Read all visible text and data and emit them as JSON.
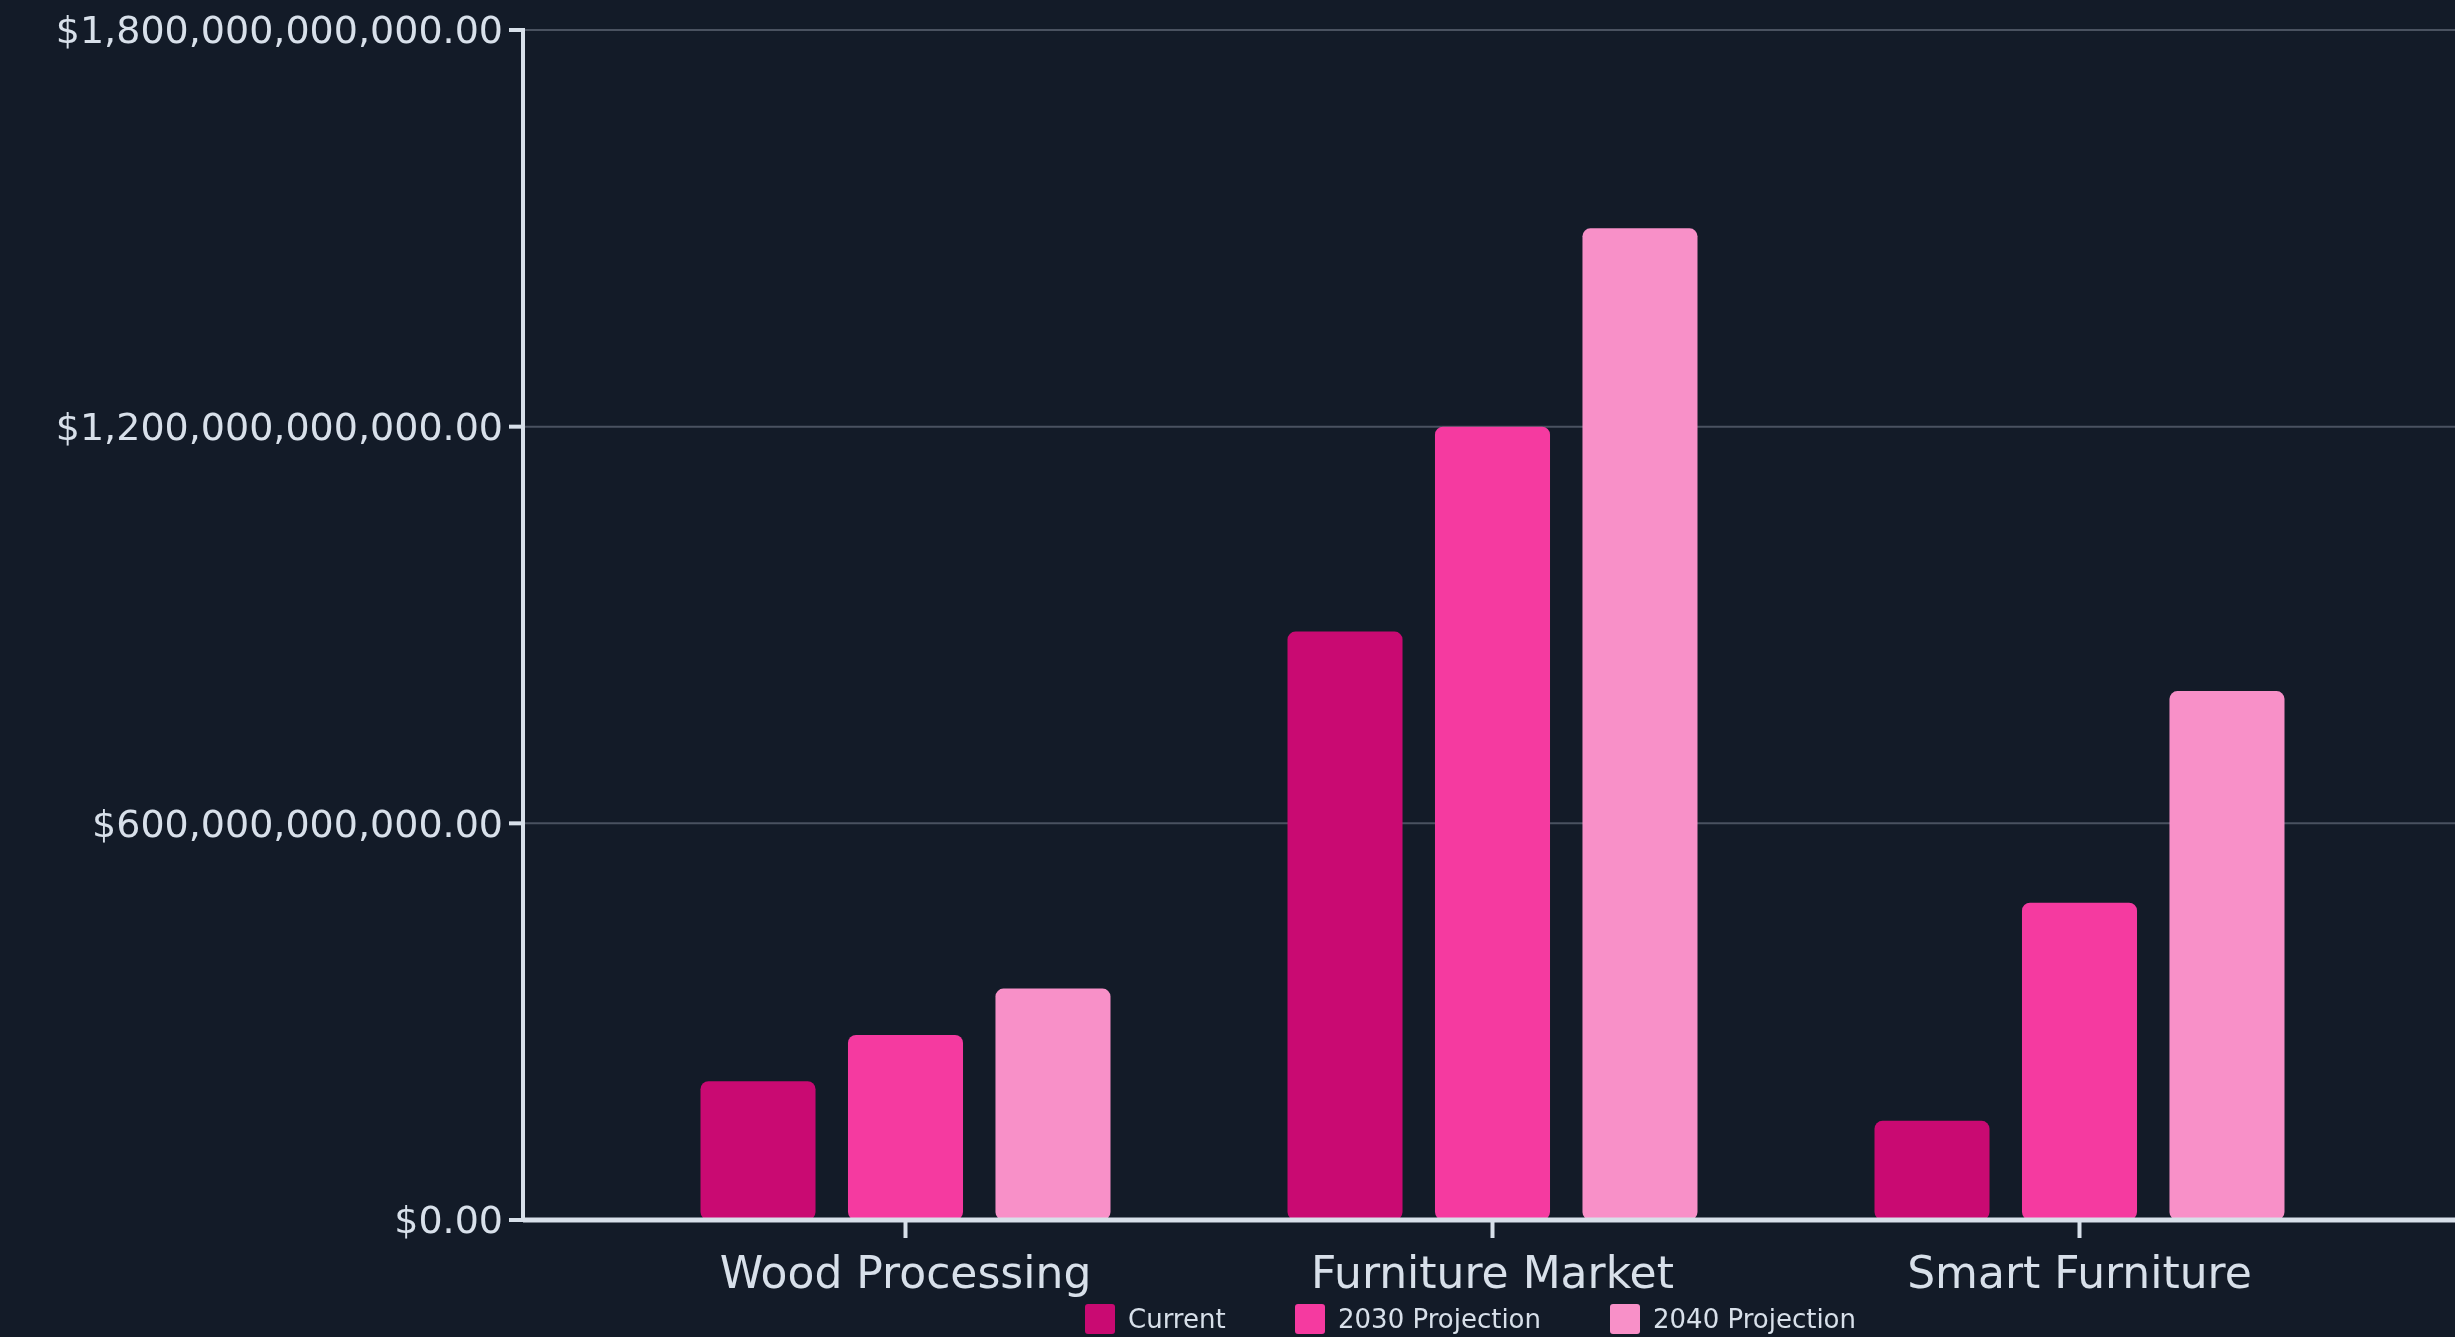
{
  "chart_data": {
    "type": "bar",
    "categories": [
      "Wood Processing",
      "Furniture Market",
      "Smart Furniture"
    ],
    "series": [
      {
        "name": "Current",
        "color": "#c90a72",
        "values": [
          210000000000,
          890000000000,
          150000000000
        ]
      },
      {
        "name": "2030 Projection",
        "color": "#f53aa0",
        "values": [
          280000000000,
          1200000000000,
          480000000000
        ]
      },
      {
        "name": "2040 Projection",
        "color": "#f890c8",
        "values": [
          350000000000,
          1500000000000,
          800000000000
        ]
      }
    ],
    "ylim": [
      0,
      1800000000000
    ],
    "yticks": [
      {
        "value": 0,
        "label": "$0.00"
      },
      {
        "value": 600000000000,
        "label": "$600,000,000,000.00"
      },
      {
        "value": 1200000000000,
        "label": "$1,200,000,000,000.00"
      },
      {
        "value": 1800000000000,
        "label": "$1,800,000,000,000.00"
      }
    ],
    "grid": "y",
    "legend": "bottom"
  }
}
